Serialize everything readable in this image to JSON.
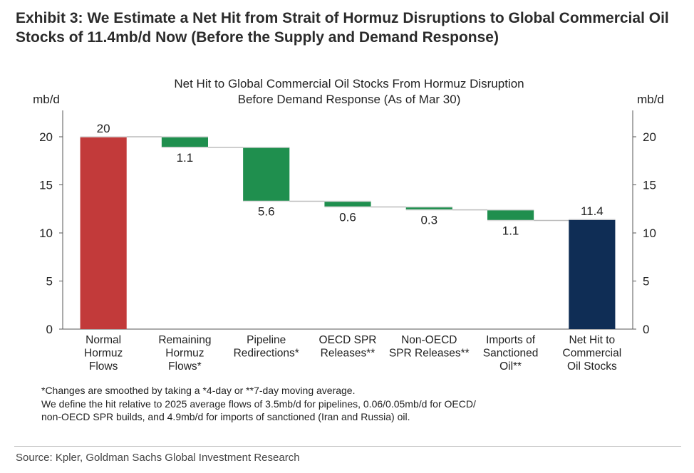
{
  "exhibit": {
    "title_line1": "Exhibit 3: We Estimate a Net Hit from Strait of Hormuz Disruptions to Global Commercial Oil",
    "title_line2": "Stocks of 11.4mb/d Now (Before the Supply and Demand Response)"
  },
  "chart_data": {
    "type": "bar",
    "subtype": "waterfall",
    "title_line1": "Net Hit to Global Commercial Oil Stocks From Hormuz Disruption",
    "title_line2": "Before Demand Response (As of Mar 30)",
    "ylabel_left": "mb/d",
    "ylabel_right": "mb/d",
    "ylim": [
      0,
      22
    ],
    "yticks": [
      0,
      5,
      10,
      15,
      20
    ],
    "categories": [
      [
        "Normal",
        "Hormuz",
        "Flows"
      ],
      [
        "Remaining",
        "Hormuz",
        "Flows*"
      ],
      [
        "Pipeline",
        "Redirections*"
      ],
      [
        "OECD SPR",
        "Releases**"
      ],
      [
        "Non-OECD",
        "SPR Releases**"
      ],
      [
        "Imports of",
        "Sanctioned",
        "Oil**"
      ],
      [
        "Net Hit to",
        "Commercial",
        "Oil Stocks"
      ]
    ],
    "bars": [
      {
        "kind": "total",
        "start": 0,
        "end": 20,
        "label": "20",
        "color": "#c23a3a"
      },
      {
        "kind": "decrease",
        "start": 20,
        "end": 18.9,
        "label": "1.1",
        "color": "#1f8f4e"
      },
      {
        "kind": "decrease",
        "start": 18.9,
        "end": 13.3,
        "label": "5.6",
        "color": "#1f8f4e"
      },
      {
        "kind": "decrease",
        "start": 13.3,
        "end": 12.7,
        "label": "0.6",
        "color": "#1f8f4e"
      },
      {
        "kind": "decrease",
        "start": 12.7,
        "end": 12.4,
        "label": "0.3",
        "color": "#1f8f4e"
      },
      {
        "kind": "decrease",
        "start": 12.4,
        "end": 11.3,
        "label": "1.1",
        "color": "#1f8f4e"
      },
      {
        "kind": "total",
        "start": 0,
        "end": 11.4,
        "label": "11.4",
        "color": "#0f2d55"
      }
    ]
  },
  "notes": {
    "line1": "*Changes are smoothed by taking a *4-day or **7-day moving average.",
    "line2": "We define the hit relative to 2025 average flows of 3.5mb/d for pipelines, 0.06/0.05mb/d for OECD/",
    "line3": "non-OECD SPR builds, and 4.9mb/d for imports of sanctioned (Iran and Russia) oil."
  },
  "source": "Source: Kpler, Goldman Sachs Global Investment Research"
}
